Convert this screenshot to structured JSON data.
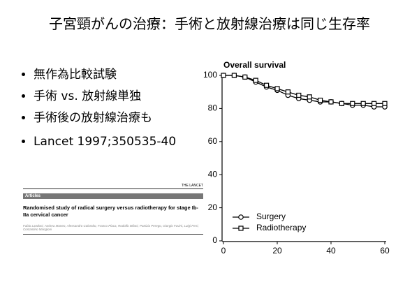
{
  "slide": {
    "title": "子宮頸がんの治療：手術と放射線治療は同じ生存率",
    "bullets": [
      "無作為比較試験",
      "手術 vs. 放射線単独",
      "手術後の放射線治療も",
      "Lancet 1997;350535-40"
    ]
  },
  "article": {
    "journal": "THE LANCET",
    "section": "Articles",
    "title": "Randomised study of radical surgery versus radiotherapy for stage Ib-IIa cervical cancer",
    "authors": "Fabio Landoni, Andrea Maneo, Alessandro Colombo, Franco Placa, Rodolfo Milani, Patrizia Perego, Giorgio Favini, Luigi Ferri, Costantino Mangioni"
  },
  "chart_data": {
    "type": "line",
    "title": "Overall survival",
    "x": [
      0,
      4,
      8,
      12,
      16,
      20,
      24,
      28,
      32,
      36,
      40,
      44,
      48,
      52,
      56,
      60
    ],
    "series": [
      {
        "name": "Surgery",
        "marker": "circle",
        "color": "#000000",
        "values": [
          100,
          100,
          99,
          96,
          93,
          91,
          88,
          86,
          85,
          84,
          84,
          83,
          82,
          82,
          81,
          81
        ]
      },
      {
        "name": "Radiotherapy",
        "marker": "square",
        "color": "#000000",
        "values": [
          100,
          100,
          99,
          97,
          94,
          92,
          90,
          88,
          87,
          85,
          84,
          83,
          83,
          83,
          83,
          83
        ]
      }
    ],
    "xlim": [
      0,
      60
    ],
    "xticks": [
      0,
      20,
      40,
      60
    ],
    "ylim": [
      0,
      100
    ],
    "yticks": [
      0,
      20,
      40,
      60,
      80,
      100
    ]
  }
}
